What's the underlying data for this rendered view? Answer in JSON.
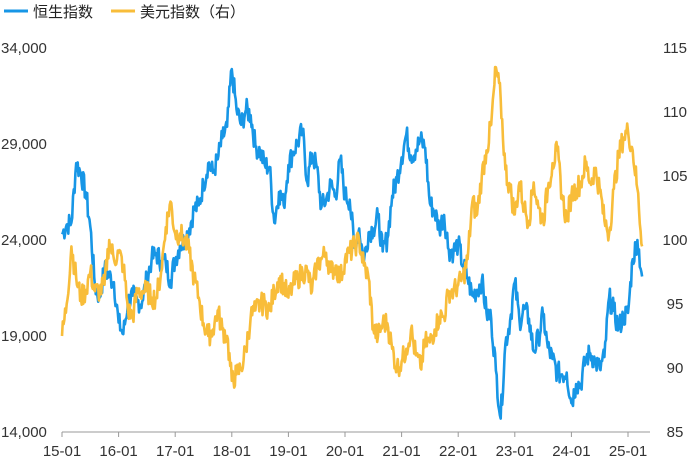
{
  "chart_data": {
    "type": "line",
    "legend": {
      "position": "top-left",
      "items": [
        {
          "name": "恒生指数",
          "color": "#1796e6"
        },
        {
          "name": "美元指数（右）",
          "color": "#f8bd3a"
        }
      ]
    },
    "x_axis": {
      "tick_labels": [
        "15-01",
        "16-01",
        "17-01",
        "18-01",
        "19-01",
        "20-01",
        "21-01",
        "22-01",
        "23-01",
        "24-01",
        "25-01"
      ]
    },
    "y_left": {
      "range": [
        14000,
        34000
      ],
      "ticks": [
        14000,
        19000,
        24000,
        29000,
        34000
      ],
      "tick_labels": [
        "14,000",
        "19,000",
        "24,000",
        "29,000",
        "34,000"
      ]
    },
    "y_right": {
      "range": [
        85,
        115
      ],
      "ticks": [
        85,
        90,
        95,
        100,
        105,
        110,
        115
      ],
      "tick_labels": [
        "85",
        "90",
        "95",
        "100",
        "105",
        "110",
        "115"
      ]
    },
    "grid": false,
    "series": [
      {
        "name": "恒生指数",
        "axis": "left",
        "color": "#1796e6",
        "x": [
          "2015-01",
          "2015-02",
          "2015-03",
          "2015-04",
          "2015-05",
          "2015-06",
          "2015-07",
          "2015-08",
          "2015-09",
          "2015-10",
          "2015-11",
          "2015-12",
          "2016-01",
          "2016-02",
          "2016-03",
          "2016-04",
          "2016-05",
          "2016-06",
          "2016-07",
          "2016-08",
          "2016-09",
          "2016-10",
          "2016-11",
          "2016-12",
          "2017-01",
          "2017-02",
          "2017-03",
          "2017-04",
          "2017-05",
          "2017-06",
          "2017-07",
          "2017-08",
          "2017-09",
          "2017-10",
          "2017-11",
          "2017-12",
          "2018-01",
          "2018-02",
          "2018-03",
          "2018-04",
          "2018-05",
          "2018-06",
          "2018-07",
          "2018-08",
          "2018-09",
          "2018-10",
          "2018-11",
          "2018-12",
          "2019-01",
          "2019-02",
          "2019-03",
          "2019-04",
          "2019-05",
          "2019-06",
          "2019-07",
          "2019-08",
          "2019-09",
          "2019-10",
          "2019-11",
          "2019-12",
          "2020-01",
          "2020-02",
          "2020-03",
          "2020-04",
          "2020-05",
          "2020-06",
          "2020-07",
          "2020-08",
          "2020-09",
          "2020-10",
          "2020-11",
          "2020-12",
          "2021-01",
          "2021-02",
          "2021-03",
          "2021-04",
          "2021-05",
          "2021-06",
          "2021-07",
          "2021-08",
          "2021-09",
          "2021-10",
          "2021-11",
          "2021-12",
          "2022-01",
          "2022-02",
          "2022-03",
          "2022-04",
          "2022-05",
          "2022-06",
          "2022-07",
          "2022-08",
          "2022-09",
          "2022-10",
          "2022-11",
          "2022-12",
          "2023-01",
          "2023-02",
          "2023-03",
          "2023-04",
          "2023-05",
          "2023-06",
          "2023-07",
          "2023-08",
          "2023-09",
          "2023-10",
          "2023-11",
          "2023-12",
          "2024-01",
          "2024-02",
          "2024-03",
          "2024-04",
          "2024-05",
          "2024-06",
          "2024-07",
          "2024-08",
          "2024-09",
          "2024-10",
          "2024-11",
          "2024-12",
          "2025-01",
          "2025-02",
          "2025-03",
          "2025-04"
        ],
        "values": [
          24300,
          24800,
          24900,
          28000,
          27500,
          26500,
          24700,
          21600,
          21000,
          22500,
          22100,
          21800,
          19700,
          19100,
          20800,
          21100,
          20800,
          20800,
          22000,
          23000,
          23300,
          22900,
          22800,
          21900,
          23000,
          23700,
          24000,
          24600,
          25600,
          25800,
          26900,
          28000,
          27500,
          28200,
          29300,
          29900,
          32900,
          30800,
          30000,
          30800,
          30500,
          28900,
          28600,
          27900,
          27800,
          24900,
          26500,
          25800,
          27900,
          28600,
          29100,
          29700,
          27000,
          28500,
          27800,
          25700,
          26100,
          26900,
          26300,
          28200,
          26300,
          26100,
          23600,
          24600,
          22900,
          24400,
          24600,
          25200,
          23400,
          24100,
          26300,
          27200,
          28300,
          29500,
          28400,
          28700,
          29200,
          28800,
          25900,
          25500,
          24600,
          25300,
          23500,
          23400,
          23800,
          22700,
          22000,
          21100,
          21400,
          21900,
          20200,
          19900,
          17200,
          14700,
          18600,
          19800,
          21800,
          19800,
          20400,
          19900,
          18200,
          18900,
          20100,
          18400,
          17800,
          17100,
          17000,
          17100,
          15500,
          16500,
          16500,
          17800,
          18100,
          17700,
          17300,
          17900,
          21000,
          20300,
          19400,
          20000,
          20200,
          23000,
          24000,
          22100
        ]
      },
      {
        "name": "美元指数（右）",
        "axis": "right",
        "color": "#f8bd3a",
        "x": [
          "2015-01",
          "2015-02",
          "2015-03",
          "2015-04",
          "2015-05",
          "2015-06",
          "2015-07",
          "2015-08",
          "2015-09",
          "2015-10",
          "2015-11",
          "2015-12",
          "2016-01",
          "2016-02",
          "2016-03",
          "2016-04",
          "2016-05",
          "2016-06",
          "2016-07",
          "2016-08",
          "2016-09",
          "2016-10",
          "2016-11",
          "2016-12",
          "2017-01",
          "2017-02",
          "2017-03",
          "2017-04",
          "2017-05",
          "2017-06",
          "2017-07",
          "2017-08",
          "2017-09",
          "2017-10",
          "2017-11",
          "2017-12",
          "2018-01",
          "2018-02",
          "2018-03",
          "2018-04",
          "2018-05",
          "2018-06",
          "2018-07",
          "2018-08",
          "2018-09",
          "2018-10",
          "2018-11",
          "2018-12",
          "2019-01",
          "2019-02",
          "2019-03",
          "2019-04",
          "2019-05",
          "2019-06",
          "2019-07",
          "2019-08",
          "2019-09",
          "2019-10",
          "2019-11",
          "2019-12",
          "2020-01",
          "2020-02",
          "2020-03",
          "2020-04",
          "2020-05",
          "2020-06",
          "2020-07",
          "2020-08",
          "2020-09",
          "2020-10",
          "2020-11",
          "2020-12",
          "2021-01",
          "2021-02",
          "2021-03",
          "2021-04",
          "2021-05",
          "2021-06",
          "2021-07",
          "2021-08",
          "2021-09",
          "2021-10",
          "2021-11",
          "2021-12",
          "2022-01",
          "2022-02",
          "2022-03",
          "2022-04",
          "2022-05",
          "2022-06",
          "2022-07",
          "2022-08",
          "2022-09",
          "2022-10",
          "2022-11",
          "2022-12",
          "2023-01",
          "2023-02",
          "2023-03",
          "2023-04",
          "2023-05",
          "2023-06",
          "2023-07",
          "2023-08",
          "2023-09",
          "2023-10",
          "2023-11",
          "2023-12",
          "2024-01",
          "2024-02",
          "2024-03",
          "2024-04",
          "2024-05",
          "2024-06",
          "2024-07",
          "2024-08",
          "2024-09",
          "2024-10",
          "2024-11",
          "2024-12",
          "2025-01",
          "2025-02",
          "2025-03",
          "2025-04"
        ],
        "values": [
          92.5,
          95.0,
          99.5,
          97.0,
          95.5,
          96.0,
          97.5,
          96.0,
          96.0,
          96.5,
          100.0,
          98.5,
          99.0,
          98.0,
          94.5,
          94.0,
          96.0,
          96.0,
          96.0,
          95.5,
          95.5,
          97.5,
          101.0,
          103.0,
          100.5,
          100.5,
          100.0,
          99.0,
          97.0,
          95.5,
          93.5,
          92.5,
          93.0,
          94.5,
          93.0,
          92.5,
          89.0,
          89.5,
          90.0,
          91.5,
          94.0,
          94.5,
          95.0,
          95.0,
          94.5,
          96.0,
          97.0,
          96.5,
          95.5,
          96.5,
          97.0,
          97.5,
          97.5,
          96.0,
          98.0,
          98.5,
          99.0,
          97.5,
          98.0,
          97.0,
          98.5,
          99.0,
          99.5,
          100.0,
          98.0,
          97.0,
          93.0,
          92.5,
          93.5,
          93.5,
          91.5,
          90.0,
          90.5,
          91.5,
          93.0,
          91.0,
          90.0,
          92.0,
          92.0,
          93.0,
          94.0,
          94.0,
          96.0,
          96.0,
          96.5,
          97.0,
          98.5,
          103.0,
          102.0,
          105.0,
          107.0,
          109.0,
          113.5,
          111.0,
          105.5,
          104.0,
          102.0,
          104.5,
          102.5,
          101.5,
          104.5,
          102.5,
          101.5,
          104.0,
          106.0,
          107.0,
          103.5,
          101.5,
          103.5,
          104.0,
          104.5,
          106.0,
          104.5,
          105.5,
          104.0,
          101.5,
          100.5,
          104.0,
          106.5,
          108.0,
          108.5,
          107.0,
          104.0,
          99.5
        ]
      }
    ]
  }
}
